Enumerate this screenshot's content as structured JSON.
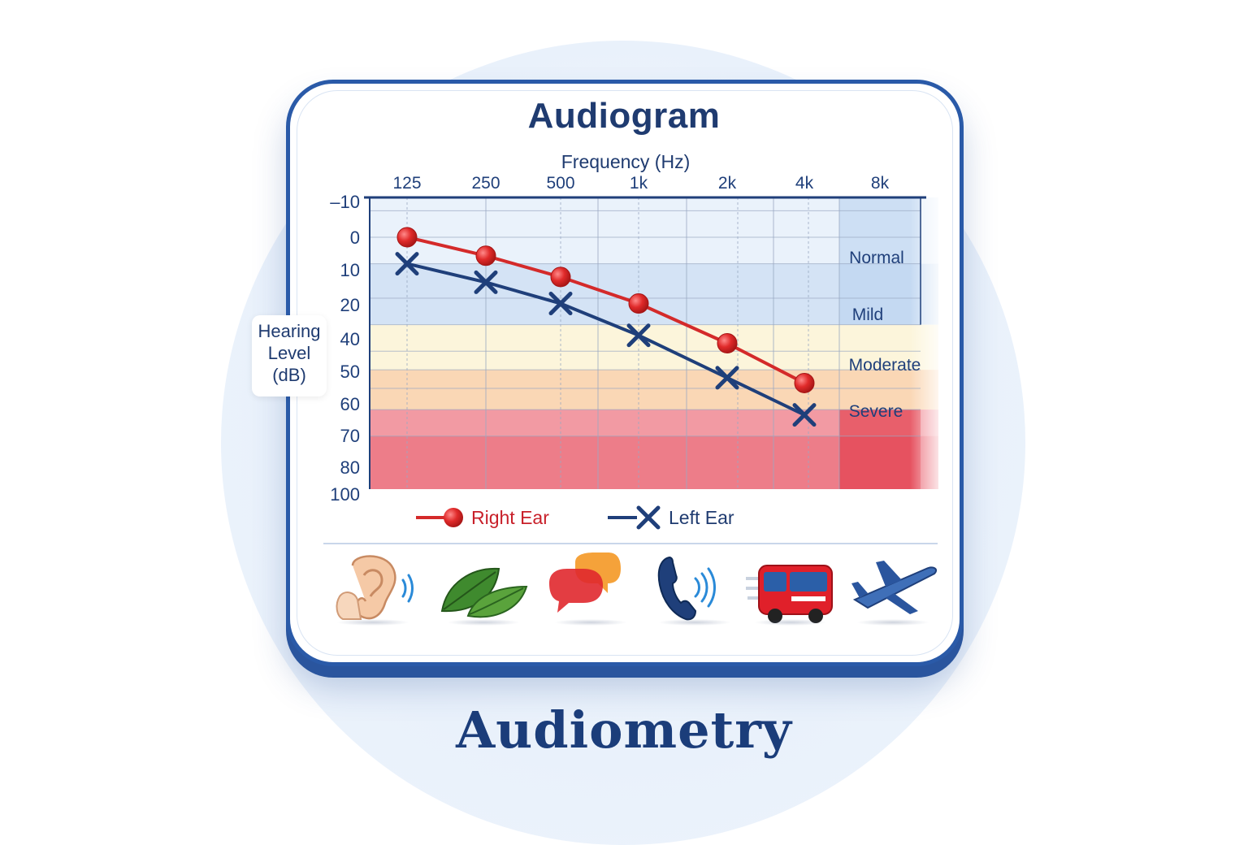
{
  "title": "Audiogram",
  "footer_title": "Audiometry",
  "colors": {
    "right_ear": "#d42a2a",
    "left_ear": "#1f3f7a",
    "frame": "#2a5aa8",
    "normal_band": "#e3edf9",
    "mild_band": "#c5daf2",
    "moderate_band": "#fbf2cf",
    "severe_band": "#f8c99c",
    "profound_band": "#ee7884"
  },
  "chart_data": {
    "type": "line",
    "title": "Audiogram",
    "xlabel": "Frequency (Hz)",
    "ylabel": "Hearing Level (dB)",
    "x_ticks": [
      "125",
      "250",
      "500",
      "1k",
      "2k",
      "4k",
      "8k"
    ],
    "y_ticks": [
      "–10",
      "0",
      "10",
      "20",
      "40",
      "50",
      "60",
      "70",
      "80",
      "100"
    ],
    "y_axis_inverted": true,
    "grid": true,
    "categories": [
      "125",
      "250",
      "500",
      "1k",
      "2k",
      "4k"
    ],
    "series": [
      {
        "name": "Right Ear",
        "marker": "circle",
        "color": "#d42a2a",
        "values": [
          5,
          12,
          20,
          30,
          45,
          60
        ]
      },
      {
        "name": "Left Ear",
        "marker": "x",
        "color": "#1f3f7a",
        "values": [
          15,
          22,
          30,
          42,
          58,
          72
        ]
      }
    ],
    "bands": [
      {
        "label": "Normal",
        "from": -10,
        "to": 15
      },
      {
        "label": "Mild",
        "from": 15,
        "to": 38
      },
      {
        "label": "Moderate",
        "from": 38,
        "to": 55
      },
      {
        "label": "Severe",
        "from": 55,
        "to": 70
      },
      {
        "label": "",
        "from": 70,
        "to": 100
      }
    ],
    "legend_position": "bottom"
  },
  "icons": [
    "ear-icon",
    "leaves-icon",
    "speech-bubbles-icon",
    "phone-icon",
    "bus-icon",
    "airplane-icon"
  ]
}
